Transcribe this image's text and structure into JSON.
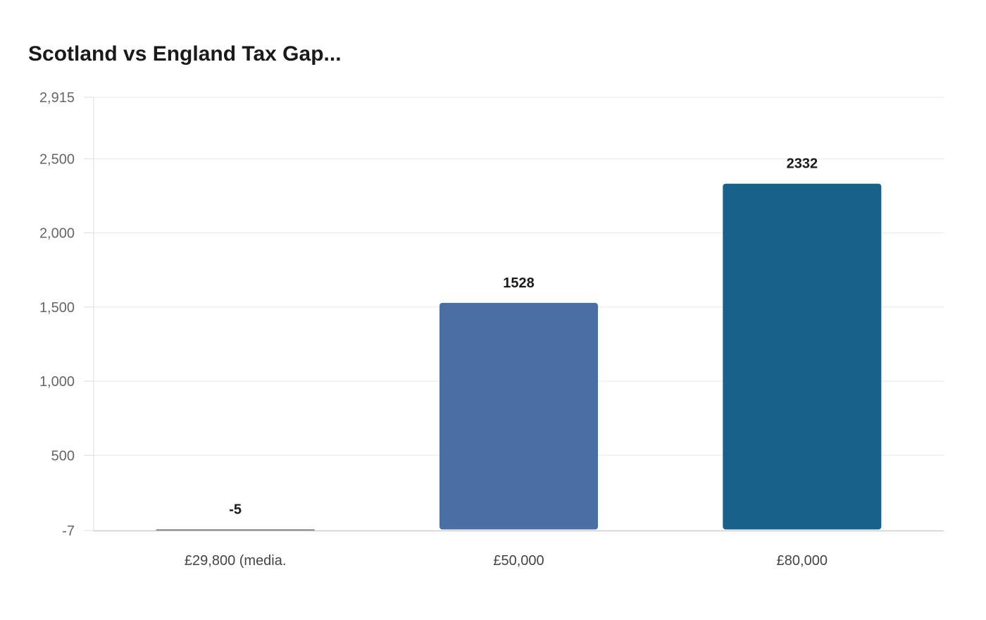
{
  "chart_data": {
    "type": "bar",
    "title": "Scotland vs England Tax Gap...",
    "xlabel": "",
    "ylabel": "",
    "categories": [
      "£29,800 (media.",
      "£50,000",
      "£80,000"
    ],
    "values": [
      -5,
      1528,
      2332
    ],
    "data_labels": [
      "-5",
      "1528",
      "2332"
    ],
    "colors": [
      "#3b4454",
      "#4a6fa5",
      "#17618a"
    ],
    "ylim": [
      -7,
      2915
    ],
    "yticks": [
      -7,
      500,
      1000,
      1500,
      2000,
      2500,
      2915
    ],
    "ytick_labels": [
      "-7",
      "500",
      "1,000",
      "1,500",
      "2,000",
      "2,500",
      "2,915"
    ],
    "grid": true,
    "legend": "none"
  }
}
